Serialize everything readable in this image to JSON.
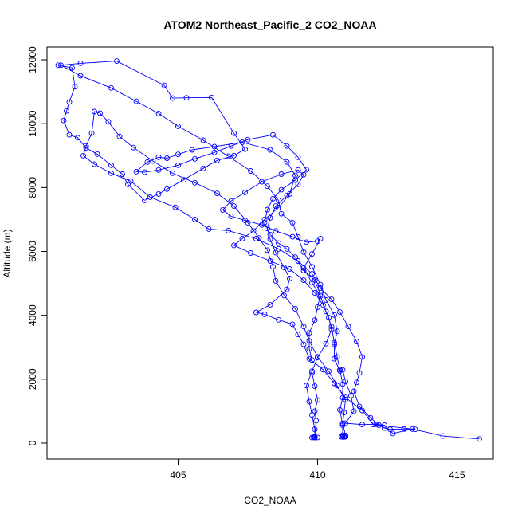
{
  "chart_data": {
    "type": "line",
    "title": "ATOM2 Northeast_Pacific_2 CO2_NOAA",
    "xlabel": "CO2_NOAA",
    "ylabel": "Altitude (m)",
    "xlim": [
      400.3,
      416.3
    ],
    "ylim": [
      -500,
      12400
    ],
    "xticks": [
      405,
      410,
      415
    ],
    "yticks": [
      0,
      2000,
      4000,
      6000,
      8000,
      10000,
      12000
    ],
    "xtick_labels": [
      "405",
      "410",
      "415"
    ],
    "ytick_labels": [
      "0",
      "2000",
      "4000",
      "6000",
      "8000",
      "10000",
      "12000"
    ],
    "grid": false,
    "colors": {
      "series": "#0000ff",
      "axis": "#000000",
      "background": "#ffffff"
    },
    "series": [
      {
        "marker": "open-circle",
        "points": [
          [
            415.8,
            130
          ],
          [
            414.5,
            220
          ],
          [
            413.4,
            440
          ],
          [
            412.7,
            300
          ],
          [
            412.4,
            560
          ],
          [
            412.1,
            590
          ],
          [
            411.6,
            580
          ],
          [
            411.0,
            620
          ],
          [
            411.3,
            1000
          ],
          [
            411.2,
            1480
          ],
          [
            411.0,
            1930
          ],
          [
            410.9,
            2290
          ],
          [
            410.8,
            2260
          ],
          [
            410.6,
            2640
          ],
          [
            410.6,
            3080
          ],
          [
            410.7,
            3500
          ],
          [
            410.6,
            4010
          ],
          [
            410.3,
            4480
          ],
          [
            410.1,
            4960
          ],
          [
            409.8,
            5520
          ],
          [
            409.5,
            5980
          ],
          [
            409.3,
            6450
          ],
          [
            409.1,
            6900
          ],
          [
            408.7,
            7180
          ],
          [
            408.6,
            7600
          ],
          [
            408.2,
            8040
          ],
          [
            407.6,
            8520
          ],
          [
            406.8,
            8980
          ],
          [
            405.9,
            9480
          ],
          [
            405.0,
            9920
          ],
          [
            404.3,
            10320
          ],
          [
            403.5,
            10700
          ],
          [
            402.6,
            11120
          ],
          [
            401.5,
            11500
          ],
          [
            400.8,
            11830
          ],
          [
            401.5,
            11890
          ],
          [
            402.8,
            11960
          ],
          [
            404.5,
            11200
          ],
          [
            404.8,
            10800
          ],
          [
            405.3,
            10810
          ],
          [
            406.2,
            10820
          ],
          [
            407.0,
            9700
          ],
          [
            407.4,
            9200
          ],
          [
            407.0,
            9000
          ],
          [
            406.4,
            8850
          ],
          [
            405.9,
            8600
          ],
          [
            405.2,
            8240
          ],
          [
            404.6,
            7950
          ],
          [
            404.3,
            7800
          ],
          [
            403.8,
            7600
          ],
          [
            403.2,
            8100
          ],
          [
            403.0,
            8420
          ],
          [
            402.6,
            8700
          ],
          [
            402.1,
            9050
          ],
          [
            401.7,
            9240
          ],
          [
            401.4,
            9560
          ],
          [
            401.1,
            9650
          ],
          [
            400.9,
            10100
          ],
          [
            401.0,
            10400
          ],
          [
            401.1,
            10680
          ],
          [
            401.3,
            11160
          ],
          [
            401.2,
            11750
          ],
          [
            400.7,
            11830
          ]
        ]
      },
      {
        "marker": "open-circle",
        "points": [
          [
            410.9,
            190
          ],
          [
            410.95,
            200
          ],
          [
            411.0,
            210
          ],
          [
            410.85,
            195
          ],
          [
            411.0,
            240
          ],
          [
            410.9,
            620
          ],
          [
            410.95,
            960
          ],
          [
            411.0,
            1360
          ],
          [
            410.7,
            1800
          ],
          [
            410.4,
            2250
          ],
          [
            410.0,
            2700
          ],
          [
            409.7,
            3200
          ],
          [
            409.5,
            3650
          ],
          [
            409.2,
            4200
          ],
          [
            408.8,
            4620
          ],
          [
            408.5,
            5080
          ],
          [
            408.4,
            5520
          ],
          [
            408.2,
            6040
          ],
          [
            407.9,
            6420
          ],
          [
            407.5,
            6900
          ],
          [
            407.0,
            7420
          ],
          [
            406.4,
            7820
          ],
          [
            405.6,
            8150
          ],
          [
            404.8,
            8450
          ],
          [
            404.1,
            8830
          ],
          [
            403.4,
            9250
          ],
          [
            402.9,
            9600
          ],
          [
            402.5,
            10060
          ],
          [
            402.2,
            10330
          ],
          [
            402.0,
            10380
          ],
          [
            401.9,
            9700
          ],
          [
            401.7,
            9300
          ],
          [
            401.6,
            9000
          ],
          [
            402.0,
            8730
          ],
          [
            402.6,
            8450
          ],
          [
            403.3,
            8200
          ],
          [
            404.0,
            7700
          ],
          [
            404.9,
            7380
          ],
          [
            405.6,
            7000
          ],
          [
            406.1,
            6700
          ],
          [
            406.8,
            6650
          ],
          [
            407.8,
            6400
          ],
          [
            408.6,
            6080
          ],
          [
            409.3,
            5700
          ],
          [
            409.8,
            5300
          ],
          [
            410.1,
            4850
          ],
          [
            410.5,
            4500
          ],
          [
            410.8,
            4100
          ],
          [
            411.1,
            3650
          ],
          [
            411.4,
            3180
          ],
          [
            411.6,
            2700
          ],
          [
            411.5,
            2200
          ],
          [
            411.4,
            1900
          ],
          [
            411.3,
            1620
          ],
          [
            411.5,
            1150
          ],
          [
            411.9,
            790
          ],
          [
            412.2,
            560
          ],
          [
            412.4,
            470
          ],
          [
            412.6,
            430
          ],
          [
            413.1,
            440
          ],
          [
            413.5,
            430
          ],
          [
            412.0,
            580
          ],
          [
            411.6,
            1020
          ],
          [
            411.0,
            1430
          ],
          [
            410.6,
            1870
          ],
          [
            410.2,
            2300
          ],
          [
            409.7,
            2640
          ],
          [
            409.5,
            3090
          ],
          [
            409.3,
            3400
          ],
          [
            409.1,
            3720
          ],
          [
            408.6,
            3860
          ],
          [
            408.1,
            4030
          ],
          [
            407.8,
            4090
          ],
          [
            408.3,
            4330
          ],
          [
            408.9,
            4810
          ],
          [
            409.0,
            5150
          ],
          [
            408.8,
            5500
          ],
          [
            408.5,
            5960
          ],
          [
            408.3,
            6380
          ],
          [
            408.2,
            6720
          ],
          [
            408.3,
            7050
          ],
          [
            408.5,
            7420
          ],
          [
            408.9,
            7750
          ],
          [
            409.3,
            8100
          ],
          [
            409.5,
            8400
          ],
          [
            409.3,
            8550
          ],
          [
            408.7,
            8420
          ],
          [
            408.0,
            8180
          ],
          [
            407.4,
            7850
          ],
          [
            406.9,
            7580
          ],
          [
            406.6,
            7300
          ],
          [
            406.9,
            7100
          ],
          [
            407.4,
            6970
          ],
          [
            408.0,
            6830
          ],
          [
            408.5,
            6640
          ],
          [
            409.1,
            6460
          ],
          [
            409.6,
            6290
          ],
          [
            410.0,
            6320
          ],
          [
            410.1,
            6400
          ],
          [
            409.8,
            5920
          ],
          [
            409.5,
            5480
          ],
          [
            409.8,
            5020
          ],
          [
            410.1,
            4600
          ],
          [
            410.3,
            4120
          ],
          [
            410.5,
            3650
          ],
          [
            410.6,
            3140
          ],
          [
            410.7,
            2700
          ],
          [
            410.8,
            2300
          ],
          [
            410.9,
            1850
          ],
          [
            410.9,
            1420
          ],
          [
            410.8,
            1040
          ],
          [
            410.9,
            560
          ],
          [
            410.9,
            250
          ],
          [
            410.95,
            190
          ],
          [
            411.0,
            200
          ]
        ]
      },
      {
        "marker": "open-circle",
        "points": [
          [
            409.8,
            170
          ],
          [
            409.85,
            180
          ],
          [
            409.9,
            170
          ],
          [
            410.0,
            175
          ],
          [
            409.9,
            200
          ],
          [
            409.95,
            700
          ],
          [
            409.9,
            1000
          ],
          [
            410.0,
            1350
          ],
          [
            409.9,
            1780
          ],
          [
            409.8,
            2200
          ],
          [
            409.8,
            2600
          ],
          [
            409.7,
            2950
          ],
          [
            409.7,
            3450
          ],
          [
            409.9,
            3850
          ],
          [
            410.0,
            4250
          ],
          [
            410.1,
            4650
          ],
          [
            409.9,
            5100
          ],
          [
            409.5,
            5400
          ],
          [
            409.2,
            5820
          ],
          [
            408.9,
            6080
          ],
          [
            408.6,
            6260
          ],
          [
            408.3,
            6530
          ],
          [
            408.1,
            6900
          ],
          [
            408.2,
            7310
          ],
          [
            408.4,
            7650
          ],
          [
            408.7,
            7930
          ],
          [
            409.2,
            8230
          ],
          [
            409.6,
            8560
          ],
          [
            409.3,
            8950
          ],
          [
            408.9,
            9300
          ],
          [
            408.4,
            9650
          ],
          [
            407.5,
            9500
          ],
          [
            406.9,
            9300
          ],
          [
            406.3,
            9100
          ],
          [
            405.6,
            8900
          ],
          [
            405.0,
            8700
          ],
          [
            404.3,
            8550
          ],
          [
            403.8,
            8480
          ],
          [
            403.5,
            8500
          ],
          [
            403.9,
            8800
          ],
          [
            404.3,
            8950
          ],
          [
            404.6,
            8920
          ],
          [
            405.0,
            9040
          ],
          [
            405.5,
            9180
          ],
          [
            406.3,
            9280
          ],
          [
            407.3,
            9420
          ],
          [
            408.3,
            9180
          ],
          [
            408.9,
            8800
          ],
          [
            409.2,
            8380
          ],
          [
            409.0,
            7800
          ],
          [
            408.6,
            7370
          ],
          [
            408.1,
            7000
          ],
          [
            407.7,
            6640
          ],
          [
            407.3,
            6400
          ],
          [
            407.0,
            6190
          ],
          [
            407.6,
            5950
          ],
          [
            408.3,
            5700
          ],
          [
            409.0,
            5450
          ],
          [
            409.5,
            5100
          ],
          [
            409.9,
            4700
          ],
          [
            410.2,
            4320
          ],
          [
            410.4,
            3930
          ],
          [
            410.5,
            3560
          ],
          [
            410.3,
            3110
          ],
          [
            410.0,
            2680
          ],
          [
            409.8,
            2250
          ],
          [
            409.6,
            1800
          ],
          [
            409.7,
            1300
          ],
          [
            409.8,
            880
          ],
          [
            409.9,
            430
          ],
          [
            409.9,
            170
          ]
        ]
      }
    ]
  }
}
